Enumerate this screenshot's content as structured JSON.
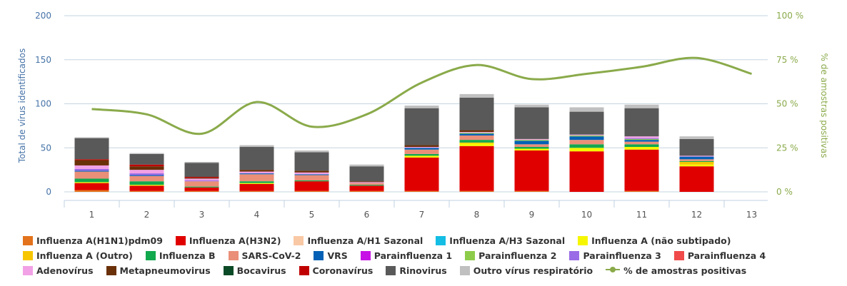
{
  "chart_data": {
    "type": "bar",
    "categories": [
      "1",
      "2",
      "3",
      "4",
      "5",
      "6",
      "7",
      "8",
      "9",
      "10",
      "11",
      "12",
      "13"
    ],
    "y_label": "Total de vírus identificados",
    "y2_label": "% de amostras positivas",
    "ylim": [
      0,
      200
    ],
    "yticks": [
      0,
      50,
      100,
      150,
      200
    ],
    "y2lim": [
      0,
      100
    ],
    "y2ticks": [
      {
        "value": 0,
        "label": "0 %"
      },
      {
        "value": 25,
        "label": "25 %"
      },
      {
        "value": 50,
        "label": "50 %"
      },
      {
        "value": 75,
        "label": "75 %"
      },
      {
        "value": 100,
        "label": "100 %"
      }
    ],
    "grid": true,
    "legend": "bottom",
    "series": [
      {
        "name": "Influenza A(H1N1)pdm09",
        "color": "#e3731c",
        "values": [
          2,
          1,
          1,
          1,
          1,
          1,
          1,
          1,
          1,
          0,
          1,
          0,
          0
        ]
      },
      {
        "name": "Influenza A(H3N2)",
        "color": "#e00000",
        "values": [
          8,
          6,
          4,
          8,
          11,
          6,
          38,
          51,
          46,
          46,
          47,
          29,
          0
        ]
      },
      {
        "name": "Influenza A/H1 Sazonal",
        "color": "#f9c8a4",
        "values": [
          0,
          0,
          0,
          0,
          0,
          0,
          0,
          0,
          0,
          0,
          0,
          0,
          0
        ]
      },
      {
        "name": "Influenza A/H3 Sazonal",
        "color": "#14bde4",
        "values": [
          0,
          0,
          0,
          0,
          0,
          0,
          0,
          0,
          0,
          0,
          0,
          0,
          0
        ]
      },
      {
        "name": "Influenza A (não subtipado)",
        "color": "#f6f600",
        "values": [
          1,
          1,
          0,
          1,
          0,
          0,
          2,
          3,
          2,
          4,
          3,
          2,
          0
        ]
      },
      {
        "name": "Influenza A (Outro)",
        "color": "#f7c600",
        "values": [
          0,
          0,
          0,
          0,
          0,
          0,
          0,
          1,
          0,
          0,
          0,
          3,
          0
        ]
      },
      {
        "name": "Influenza B",
        "color": "#12a84e",
        "values": [
          4,
          4,
          1,
          2,
          1,
          1,
          2,
          3,
          2,
          4,
          3,
          1,
          0
        ]
      },
      {
        "name": "SARS-CoV-2",
        "color": "#ea8f78",
        "values": [
          8,
          6,
          6,
          8,
          6,
          2,
          5,
          5,
          3,
          5,
          3,
          2,
          0
        ]
      },
      {
        "name": "VRS",
        "color": "#0461b5",
        "values": [
          1,
          1,
          0,
          1,
          1,
          0,
          2,
          2,
          4,
          4,
          2,
          3,
          0
        ]
      },
      {
        "name": "Parainfluenza 1",
        "color": "#c710e6",
        "values": [
          0,
          0,
          0,
          0,
          0,
          0,
          0,
          0,
          0,
          0,
          0,
          0,
          0
        ]
      },
      {
        "name": "Parainfluenza 2",
        "color": "#8dcc4a",
        "values": [
          0,
          0,
          0,
          0,
          0,
          0,
          0,
          1,
          1,
          1,
          1,
          0,
          0
        ]
      },
      {
        "name": "Parainfluenza 3",
        "color": "#9a6be6",
        "values": [
          2,
          2,
          1,
          0,
          0,
          0,
          0,
          0,
          0,
          0,
          1,
          0,
          0
        ]
      },
      {
        "name": "Parainfluenza 4",
        "color": "#f04a4a",
        "values": [
          0,
          0,
          0,
          0,
          0,
          0,
          0,
          0,
          0,
          0,
          0,
          0,
          0
        ]
      },
      {
        "name": "Adenovírus",
        "color": "#f2a1e6",
        "values": [
          4,
          4,
          2,
          2,
          2,
          1,
          1,
          1,
          1,
          1,
          2,
          1,
          0
        ]
      },
      {
        "name": "Metapneumovirus",
        "color": "#6a3008",
        "values": [
          6,
          4,
          1,
          2,
          2,
          1,
          2,
          2,
          0,
          0,
          0,
          0,
          0
        ]
      },
      {
        "name": "Bocavirus",
        "color": "#0b4a26",
        "values": [
          0,
          0,
          0,
          0,
          0,
          0,
          0,
          0,
          0,
          0,
          0,
          0,
          0
        ]
      },
      {
        "name": "Coronavírus",
        "color": "#c00000",
        "values": [
          1,
          2,
          1,
          0,
          0,
          0,
          0,
          0,
          0,
          0,
          0,
          0,
          0
        ]
      },
      {
        "name": "Rinovirus",
        "color": "#595959",
        "values": [
          24,
          12,
          16,
          26,
          21,
          17,
          42,
          37,
          36,
          26,
          32,
          19,
          0
        ]
      },
      {
        "name": "Outro vírus respiratório",
        "color": "#c0c0c0",
        "values": [
          1,
          1,
          1,
          2,
          2,
          2,
          3,
          4,
          3,
          5,
          4,
          3,
          0
        ]
      },
      {
        "name": "% de amostras positivas",
        "type": "line",
        "axis": "y2",
        "color": "#8aaa4a",
        "values": [
          47,
          44,
          33,
          51,
          37,
          44,
          62,
          72,
          64,
          67,
          71,
          76,
          67
        ]
      }
    ]
  }
}
